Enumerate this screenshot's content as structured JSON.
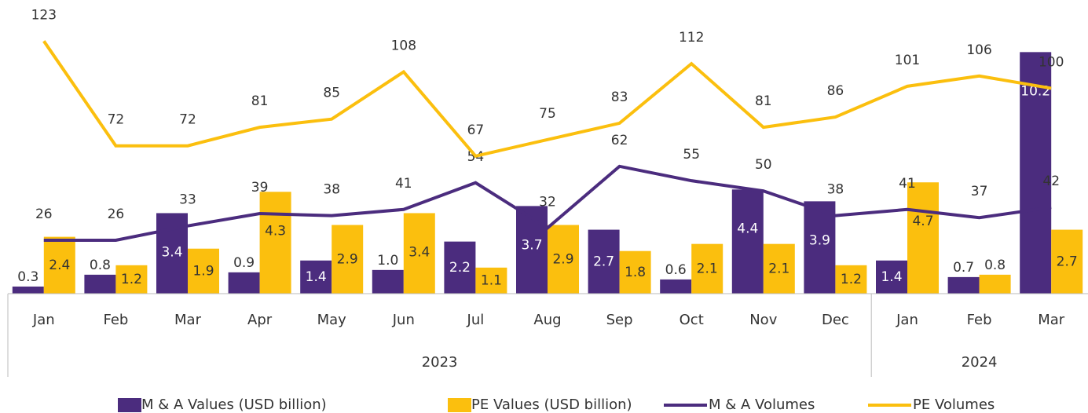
{
  "chart_data": {
    "type": "bar-line",
    "categories": [
      "Jan",
      "Feb",
      "Mar",
      "Apr",
      "May",
      "Jun",
      "Jul",
      "Aug",
      "Sep",
      "Oct",
      "Nov",
      "Dec",
      "Jan",
      "Feb",
      "Mar"
    ],
    "x_groups": [
      {
        "label": "2023",
        "span": 12
      },
      {
        "label": "2024",
        "span": 3
      }
    ],
    "series": [
      {
        "name": "M & A Values (USD billion)",
        "type": "bar",
        "color": "#4b2c7e",
        "values": [
          0.3,
          0.8,
          3.4,
          0.9,
          1.4,
          1.0,
          2.2,
          3.7,
          2.7,
          0.6,
          4.4,
          3.9,
          1.4,
          0.7,
          10.2
        ],
        "value_labels": [
          "0.3",
          "0.8",
          "3.4",
          "0.9",
          "1.4",
          "1.0",
          "2.2",
          "3.7",
          "2.7",
          "0.6",
          "4.4",
          "3.9",
          "1.4",
          "0.7",
          "10.2"
        ]
      },
      {
        "name": "PE Values (USD billion)",
        "type": "bar",
        "color": "#fbbf0e",
        "values": [
          2.4,
          1.2,
          1.9,
          4.3,
          2.9,
          3.4,
          1.1,
          2.9,
          1.8,
          2.1,
          2.1,
          1.2,
          4.7,
          0.8,
          2.7
        ]
      },
      {
        "name": "M & A Volumes",
        "type": "line",
        "axis": "y2",
        "color": "#4b2c7e",
        "values": [
          26,
          26,
          33,
          39,
          38,
          41,
          54,
          32,
          62,
          55,
          50,
          38,
          41,
          37,
          42
        ]
      },
      {
        "name": "PE Volumes",
        "type": "line",
        "axis": "y2",
        "color": "#fbbf0e",
        "values": [
          123,
          72,
          72,
          81,
          85,
          108,
          67,
          75,
          83,
          112,
          81,
          86,
          101,
          106,
          100
        ]
      }
    ],
    "ylim": [
      0,
      12.4
    ],
    "y2lim": [
      0,
      143
    ],
    "grid": false,
    "legend": "bottom"
  }
}
